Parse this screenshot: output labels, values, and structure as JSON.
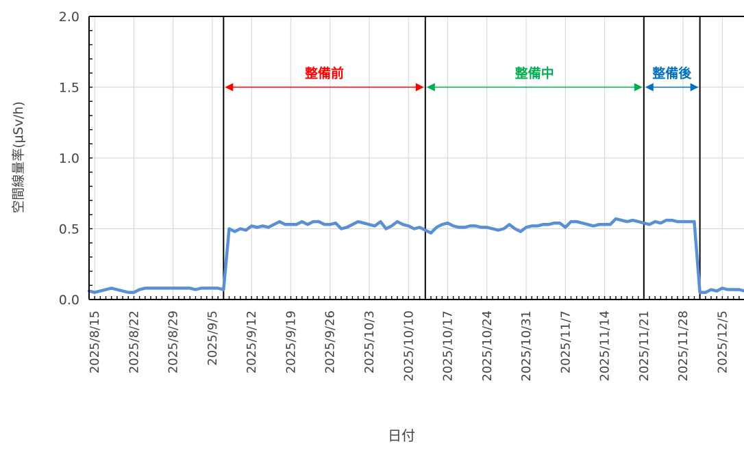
{
  "chart_data": {
    "type": "line",
    "xlabel": "日付",
    "ylabel": "空間線量率(μSv/h)",
    "ylim": [
      0,
      2.0
    ],
    "y_ticks": [
      "0.0",
      "0.5",
      "1.0",
      "1.5",
      "2.0"
    ],
    "x_start": "2025/8/14",
    "x_end": "2025/12/9",
    "x_ticks": [
      "2025/8/15",
      "2025/8/22",
      "2025/8/29",
      "2025/9/5",
      "2025/9/12",
      "2025/9/19",
      "2025/9/26",
      "2025/10/3",
      "2025/10/10",
      "2025/10/17",
      "2025/10/24",
      "2025/10/31",
      "2025/11/7",
      "2025/11/14",
      "2025/11/21",
      "2025/11/28",
      "2025/12/5"
    ],
    "grid": true,
    "line_color": "#5b8fd4",
    "series": [
      {
        "values": [
          [
            "2025/8/14",
            0.06
          ],
          [
            "2025/8/15",
            0.05
          ],
          [
            "2025/8/16",
            0.06
          ],
          [
            "2025/8/17",
            0.07
          ],
          [
            "2025/8/18",
            0.08
          ],
          [
            "2025/8/19",
            0.07
          ],
          [
            "2025/8/20",
            0.06
          ],
          [
            "2025/8/21",
            0.05
          ],
          [
            "2025/8/22",
            0.05
          ],
          [
            "2025/8/23",
            0.07
          ],
          [
            "2025/8/24",
            0.08
          ],
          [
            "2025/8/25",
            0.08
          ],
          [
            "2025/8/26",
            0.08
          ],
          [
            "2025/8/27",
            0.08
          ],
          [
            "2025/8/28",
            0.08
          ],
          [
            "2025/8/29",
            0.08
          ],
          [
            "2025/8/30",
            0.08
          ],
          [
            "2025/8/31",
            0.08
          ],
          [
            "2025/9/1",
            0.08
          ],
          [
            "2025/9/2",
            0.07
          ],
          [
            "2025/9/3",
            0.08
          ],
          [
            "2025/9/4",
            0.08
          ],
          [
            "2025/9/5",
            0.08
          ],
          [
            "2025/9/6",
            0.08
          ],
          [
            "2025/9/7",
            0.07
          ],
          [
            "2025/9/8",
            0.5
          ],
          [
            "2025/9/9",
            0.48
          ],
          [
            "2025/9/10",
            0.5
          ],
          [
            "2025/9/11",
            0.49
          ],
          [
            "2025/9/12",
            0.52
          ],
          [
            "2025/9/13",
            0.51
          ],
          [
            "2025/9/14",
            0.52
          ],
          [
            "2025/9/15",
            0.51
          ],
          [
            "2025/9/16",
            0.53
          ],
          [
            "2025/9/17",
            0.55
          ],
          [
            "2025/9/18",
            0.53
          ],
          [
            "2025/9/19",
            0.53
          ],
          [
            "2025/9/20",
            0.53
          ],
          [
            "2025/9/21",
            0.55
          ],
          [
            "2025/9/22",
            0.53
          ],
          [
            "2025/9/23",
            0.55
          ],
          [
            "2025/9/24",
            0.55
          ],
          [
            "2025/9/25",
            0.53
          ],
          [
            "2025/9/26",
            0.53
          ],
          [
            "2025/9/27",
            0.54
          ],
          [
            "2025/9/28",
            0.5
          ],
          [
            "2025/9/29",
            0.51
          ],
          [
            "2025/9/30",
            0.53
          ],
          [
            "2025/10/1",
            0.55
          ],
          [
            "2025/10/2",
            0.54
          ],
          [
            "2025/10/3",
            0.53
          ],
          [
            "2025/10/4",
            0.52
          ],
          [
            "2025/10/5",
            0.55
          ],
          [
            "2025/10/6",
            0.5
          ],
          [
            "2025/10/7",
            0.52
          ],
          [
            "2025/10/8",
            0.55
          ],
          [
            "2025/10/9",
            0.53
          ],
          [
            "2025/10/10",
            0.52
          ],
          [
            "2025/10/11",
            0.5
          ],
          [
            "2025/10/12",
            0.51
          ],
          [
            "2025/10/13",
            0.49
          ],
          [
            "2025/10/14",
            0.47
          ],
          [
            "2025/10/15",
            0.51
          ],
          [
            "2025/10/16",
            0.53
          ],
          [
            "2025/10/17",
            0.54
          ],
          [
            "2025/10/18",
            0.52
          ],
          [
            "2025/10/19",
            0.51
          ],
          [
            "2025/10/20",
            0.51
          ],
          [
            "2025/10/21",
            0.52
          ],
          [
            "2025/10/22",
            0.52
          ],
          [
            "2025/10/23",
            0.51
          ],
          [
            "2025/10/24",
            0.51
          ],
          [
            "2025/10/25",
            0.5
          ],
          [
            "2025/10/26",
            0.49
          ],
          [
            "2025/10/27",
            0.5
          ],
          [
            "2025/10/28",
            0.53
          ],
          [
            "2025/10/29",
            0.5
          ],
          [
            "2025/10/30",
            0.48
          ],
          [
            "2025/10/31",
            0.51
          ],
          [
            "2025/11/1",
            0.52
          ],
          [
            "2025/11/2",
            0.52
          ],
          [
            "2025/11/3",
            0.53
          ],
          [
            "2025/11/4",
            0.53
          ],
          [
            "2025/11/5",
            0.54
          ],
          [
            "2025/11/6",
            0.54
          ],
          [
            "2025/11/7",
            0.51
          ],
          [
            "2025/11/8",
            0.55
          ],
          [
            "2025/11/9",
            0.55
          ],
          [
            "2025/11/10",
            0.54
          ],
          [
            "2025/11/11",
            0.53
          ],
          [
            "2025/11/12",
            0.52
          ],
          [
            "2025/11/13",
            0.53
          ],
          [
            "2025/11/14",
            0.53
          ],
          [
            "2025/11/15",
            0.53
          ],
          [
            "2025/11/16",
            0.57
          ],
          [
            "2025/11/17",
            0.56
          ],
          [
            "2025/11/18",
            0.55
          ],
          [
            "2025/11/19",
            0.56
          ],
          [
            "2025/11/20",
            0.55
          ],
          [
            "2025/11/21",
            0.54
          ],
          [
            "2025/11/22",
            0.53
          ],
          [
            "2025/11/23",
            0.55
          ],
          [
            "2025/11/24",
            0.54
          ],
          [
            "2025/11/25",
            0.56
          ],
          [
            "2025/11/26",
            0.56
          ],
          [
            "2025/11/27",
            0.55
          ],
          [
            "2025/11/28",
            0.55
          ],
          [
            "2025/11/29",
            0.55
          ],
          [
            "2025/11/30",
            0.55
          ],
          [
            "2025/12/1",
            0.05
          ],
          [
            "2025/12/2",
            0.05
          ],
          [
            "2025/12/3",
            0.07
          ],
          [
            "2025/12/4",
            0.06
          ],
          [
            "2025/12/5",
            0.08
          ],
          [
            "2025/12/6",
            0.07
          ],
          [
            "2025/12/7",
            0.07
          ],
          [
            "2025/12/8",
            0.07
          ],
          [
            "2025/12/9",
            0.06
          ]
        ]
      }
    ],
    "phase_markers": [
      "2025/9/7",
      "2025/10/13",
      "2025/11/21",
      "2025/12/1"
    ],
    "arrow_y": 1.5,
    "periods": [
      {
        "label": "整備前",
        "start": "2025/9/7",
        "end": "2025/10/13",
        "color": "#ff0000"
      },
      {
        "label": "整備中",
        "start": "2025/10/13",
        "end": "2025/11/21",
        "color": "#00b050"
      },
      {
        "label": "整備後",
        "start": "2025/11/21",
        "end": "2025/12/1",
        "color": "#0070c0"
      }
    ]
  }
}
